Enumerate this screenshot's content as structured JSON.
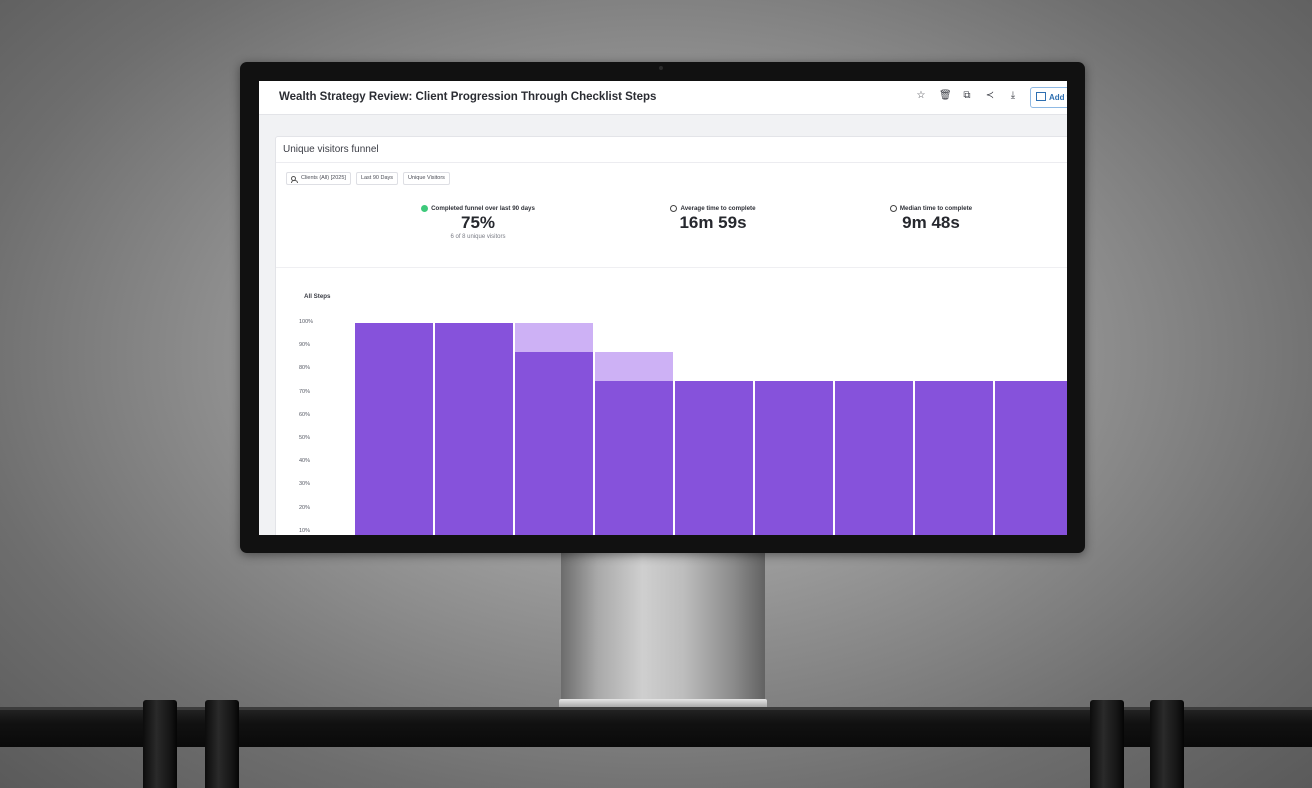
{
  "app": {
    "title": "Wealth Strategy Review: Client Progression Through Checklist Steps",
    "header_icons": [
      "star-icon",
      "trash-icon",
      "copy-icon",
      "share-icon",
      "download-icon"
    ],
    "add_button_label": "Add to"
  },
  "card": {
    "title": "Unique visitors funnel",
    "filters": [
      "Clients (All) [2025]",
      "Last 90 Days",
      "Unique Visitors"
    ]
  },
  "stats": {
    "completed": {
      "label": "Completed funnel over last 90 days",
      "value": "75%",
      "sub": "6 of 8 unique visitors"
    },
    "average": {
      "label": "Average time to complete",
      "value": "16m 59s"
    },
    "median": {
      "label": "Median time to complete",
      "value": "9m 48s"
    }
  },
  "chart_data": {
    "type": "bar",
    "title": "All Steps",
    "ytick_labels": [
      "100%",
      "90%",
      "80%",
      "70%",
      "60%",
      "50%",
      "40%",
      "30%",
      "20%",
      "10%"
    ],
    "ylim": [
      0,
      100
    ],
    "series": [
      {
        "values": [
          100,
          100,
          87.5,
          75,
          75,
          75,
          75,
          75,
          75
        ]
      },
      {
        "values": [
          0,
          0,
          12.5,
          12.5,
          0,
          0,
          0,
          0,
          0
        ]
      }
    ],
    "colors": {
      "completed": "#8652db",
      "dropoff": "#cdb1f5"
    }
  }
}
